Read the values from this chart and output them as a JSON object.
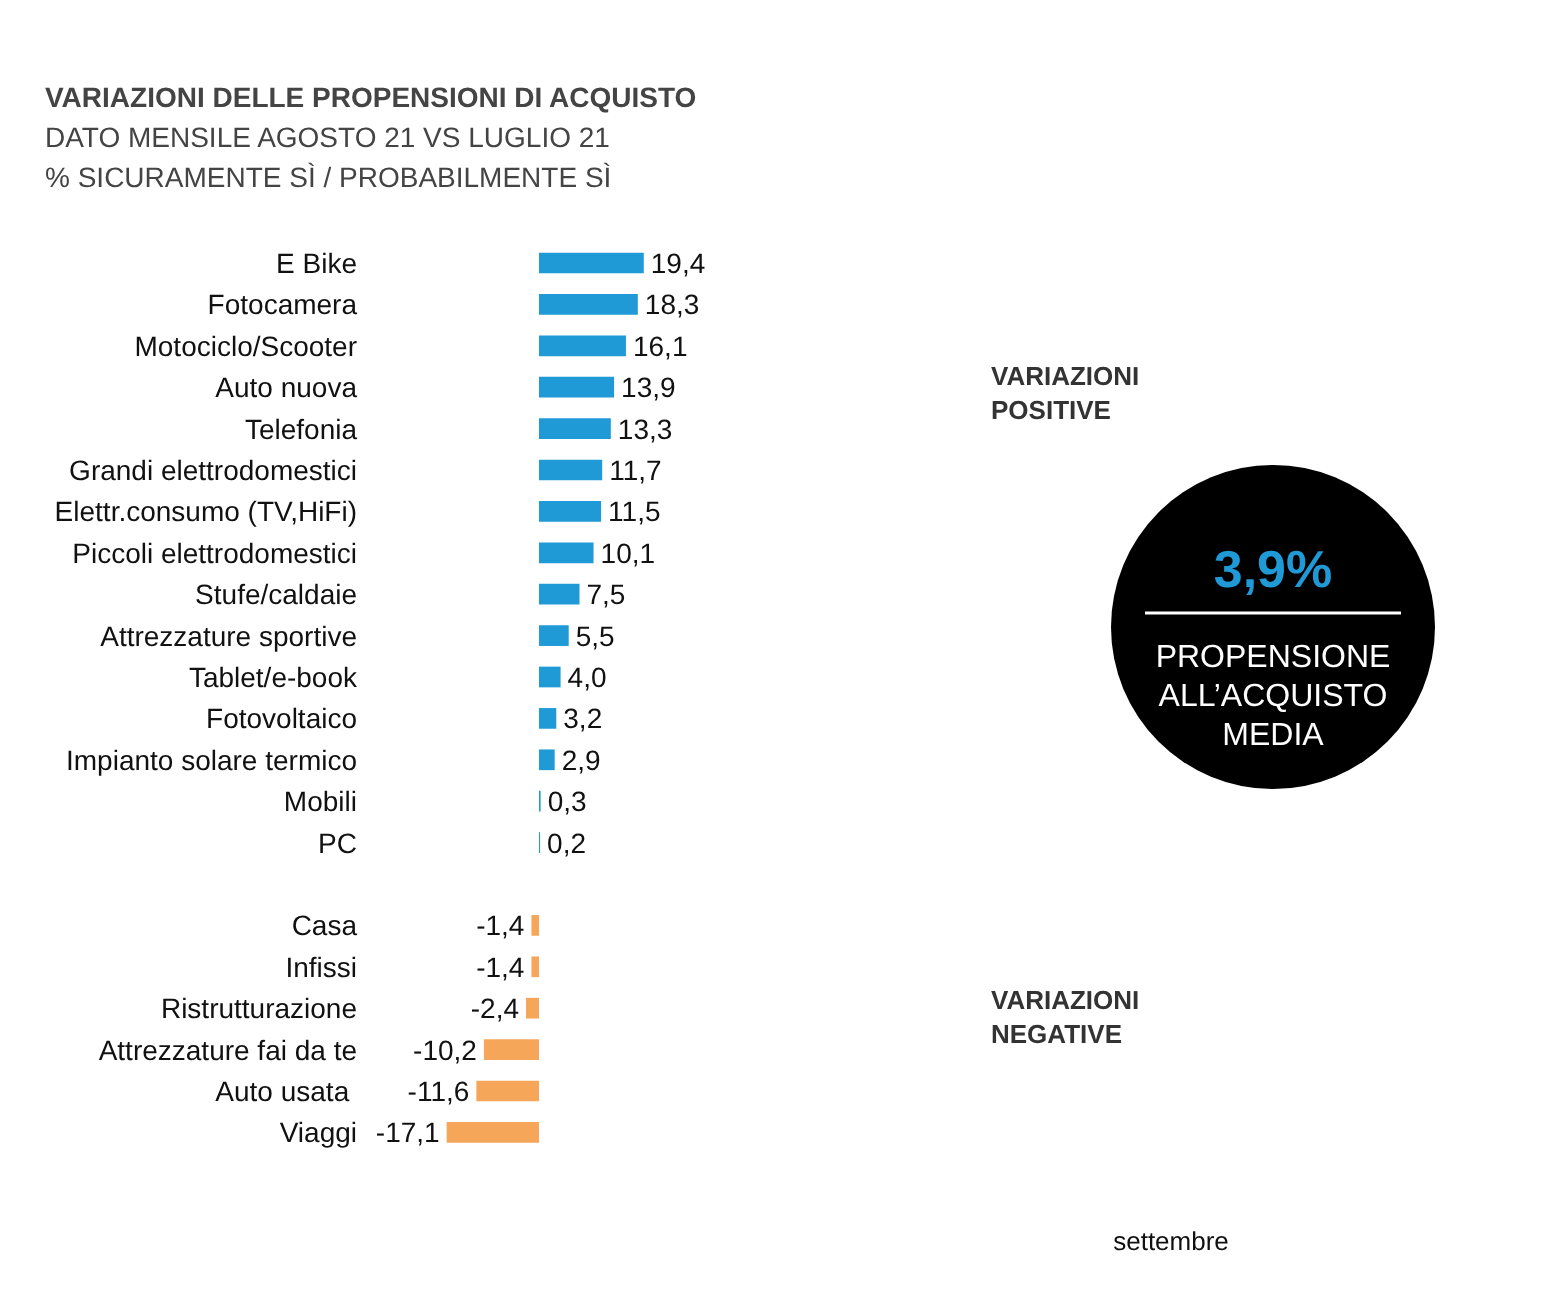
{
  "chart_data": {
    "type": "bar",
    "orientation": "horizontal",
    "title": "VARIAZIONI DELLE PROPENSIONI DI ACQUISTO",
    "subtitle": "DATO MENSILE AGOSTO 21 VS LUGLIO 21\n% SICURAMENTE SÌ / PROBABILMENTE SÌ",
    "categories": [
      "E Bike",
      "Fotocamera",
      "Motociclo/Scooter",
      "Auto nuova",
      "Telefonia",
      "Grandi elettrodomestici",
      "Elettr.consumo (TV,HiFi)",
      "Piccoli elettrodomestici",
      "Stufe/caldaie",
      "Attrezzature sportive",
      "Tablet/e-book",
      "Fotovoltaico",
      "Impianto solare termico",
      "Mobili",
      "PC",
      null,
      "Casa",
      "Infissi",
      "Ristrutturazione",
      "Attrezzature fai da te",
      "Auto  usata",
      "Viaggi"
    ],
    "values": [
      19.4,
      18.3,
      16.1,
      13.9,
      13.3,
      11.7,
      11.5,
      10.1,
      7.5,
      5.5,
      4.0,
      3.2,
      2.9,
      0.3,
      0.2,
      null,
      -1.4,
      -1.4,
      -2.4,
      -10.2,
      -11.6,
      -17.1
    ],
    "colors": [
      "#1f9ad6",
      "#1f9ad6",
      "#1f9ad6",
      "#1f9ad6",
      "#1f9ad6",
      "#1f9ad6",
      "#1f9ad6",
      "#1f9ad6",
      "#1f9ad6",
      "#1f9ad6",
      "#1f9ad6",
      "#1f9ad6",
      "#1f9ad6",
      "#1f9ad6",
      "#1f9ad6",
      null,
      "#f6a659",
      "#f6a659",
      "#f6a659",
      "#f6a659",
      "#f6a659",
      "#f6a659"
    ],
    "value_labels": [
      "19,4",
      "18,3",
      "16,1",
      "13,9",
      "13,3",
      "11,7",
      "11,5",
      "10,1",
      "7,5",
      "5,5",
      "4,0",
      "3,2",
      "2,9",
      "0,3",
      "0,2",
      null,
      "-1,4",
      "-1,4",
      "-2,4",
      "-10,2",
      "-11,6",
      "-17,1"
    ],
    "tick_labels": "y",
    "grid": false,
    "annotations": [
      "VARIAZIONI\nPOSITIVE",
      "3,9%",
      "PROPENSIONE\nALL’ACQUISTO\nMEDIA",
      "VARIAZIONI\nNEGATIVE",
      "settembre"
    ]
  }
}
